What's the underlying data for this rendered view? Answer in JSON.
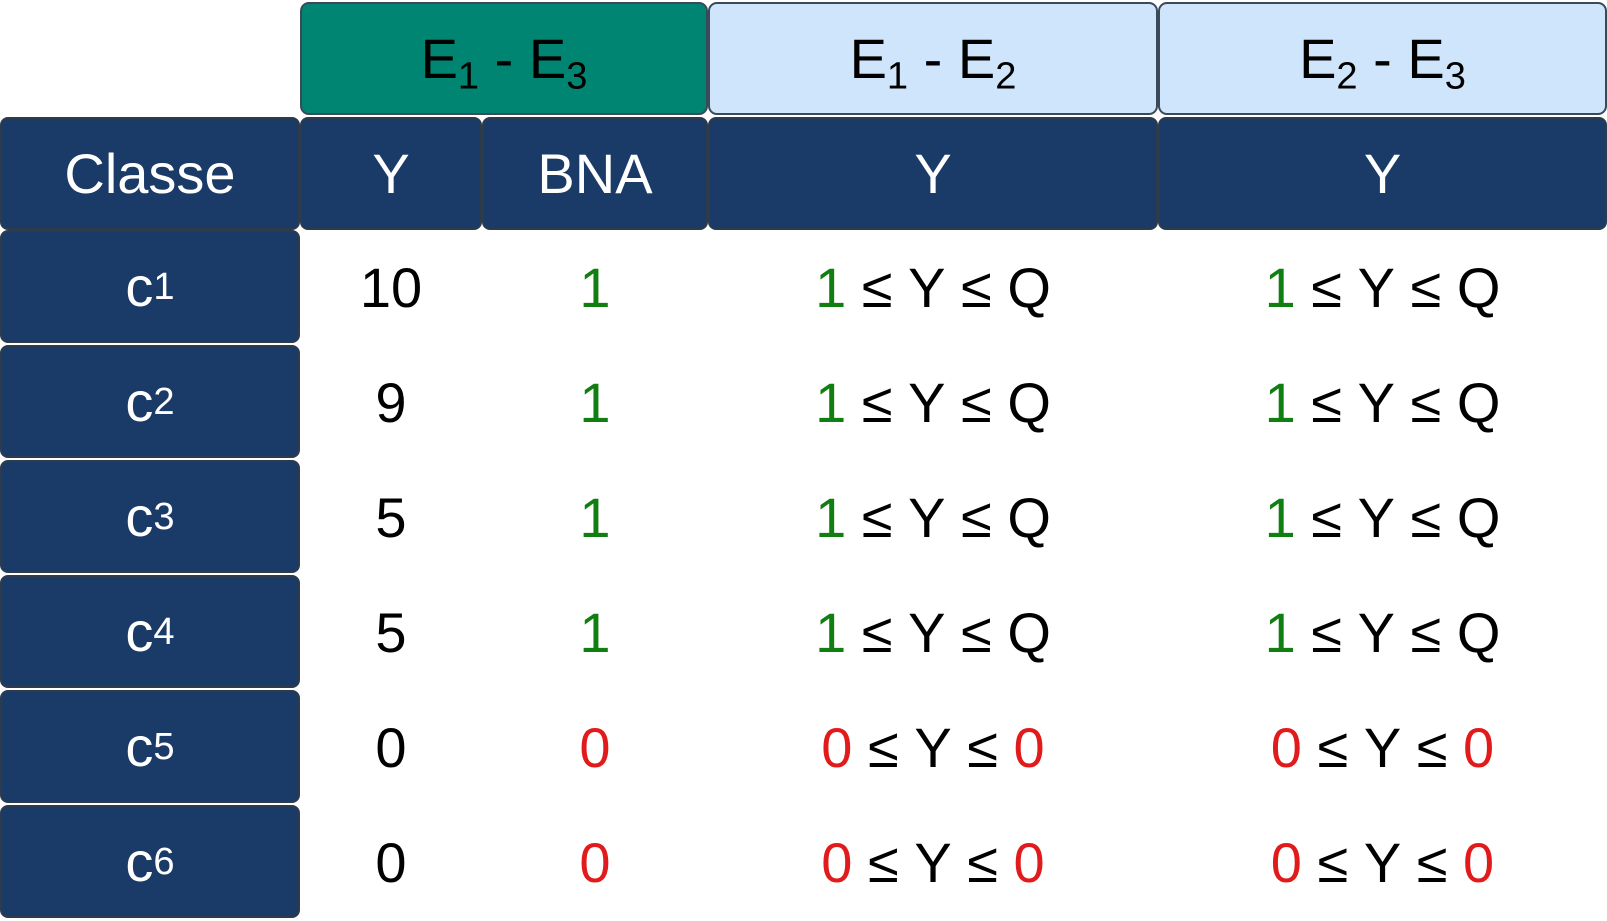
{
  "colors": {
    "teal": "#008572",
    "light_blue": "#cfe5fb",
    "navy": "#1a3a67",
    "green": "#107e10",
    "red": "#e11b1b"
  },
  "top_headers": [
    {
      "base1": "E",
      "sub1": "1",
      "sep": " - ",
      "base2": "E",
      "sub2": "3"
    },
    {
      "base1": "E",
      "sub1": "1",
      "sep": " - ",
      "base2": "E",
      "sub2": "2"
    },
    {
      "base1": "E",
      "sub1": "2",
      "sep": " - ",
      "base2": "E",
      "sub2": "3"
    }
  ],
  "sub_headers": {
    "classe": "Classe",
    "y1": "Y",
    "bna": "BNA",
    "y2": "Y",
    "y3": "Y"
  },
  "rows": [
    {
      "base": "c",
      "sub": "1",
      "y": "10",
      "bna": "1",
      "lo": "1",
      "le1": " ≤ ",
      "mid": "Y",
      "le2": " ≤ ",
      "hi": "Q"
    },
    {
      "base": "c",
      "sub": "2",
      "y": "9",
      "bna": "1",
      "lo": "1",
      "le1": " ≤ ",
      "mid": "Y",
      "le2": " ≤ ",
      "hi": "Q"
    },
    {
      "base": "c",
      "sub": "3",
      "y": "5",
      "bna": "1",
      "lo": "1",
      "le1": " ≤ ",
      "mid": "Y",
      "le2": " ≤ ",
      "hi": "Q"
    },
    {
      "base": "c",
      "sub": "4",
      "y": "5",
      "bna": "1",
      "lo": "1",
      "le1": " ≤ ",
      "mid": "Y",
      "le2": " ≤ ",
      "hi": "Q"
    },
    {
      "base": "c",
      "sub": "5",
      "y": "0",
      "bna": "0",
      "lo": "0",
      "le1": " ≤ ",
      "mid": "Y",
      "le2": " ≤ ",
      "hi": "0"
    },
    {
      "base": "c",
      "sub": "6",
      "y": "0",
      "bna": "0",
      "lo": "0",
      "le1": " ≤ ",
      "mid": "Y",
      "le2": " ≤ ",
      "hi": "0"
    }
  ]
}
